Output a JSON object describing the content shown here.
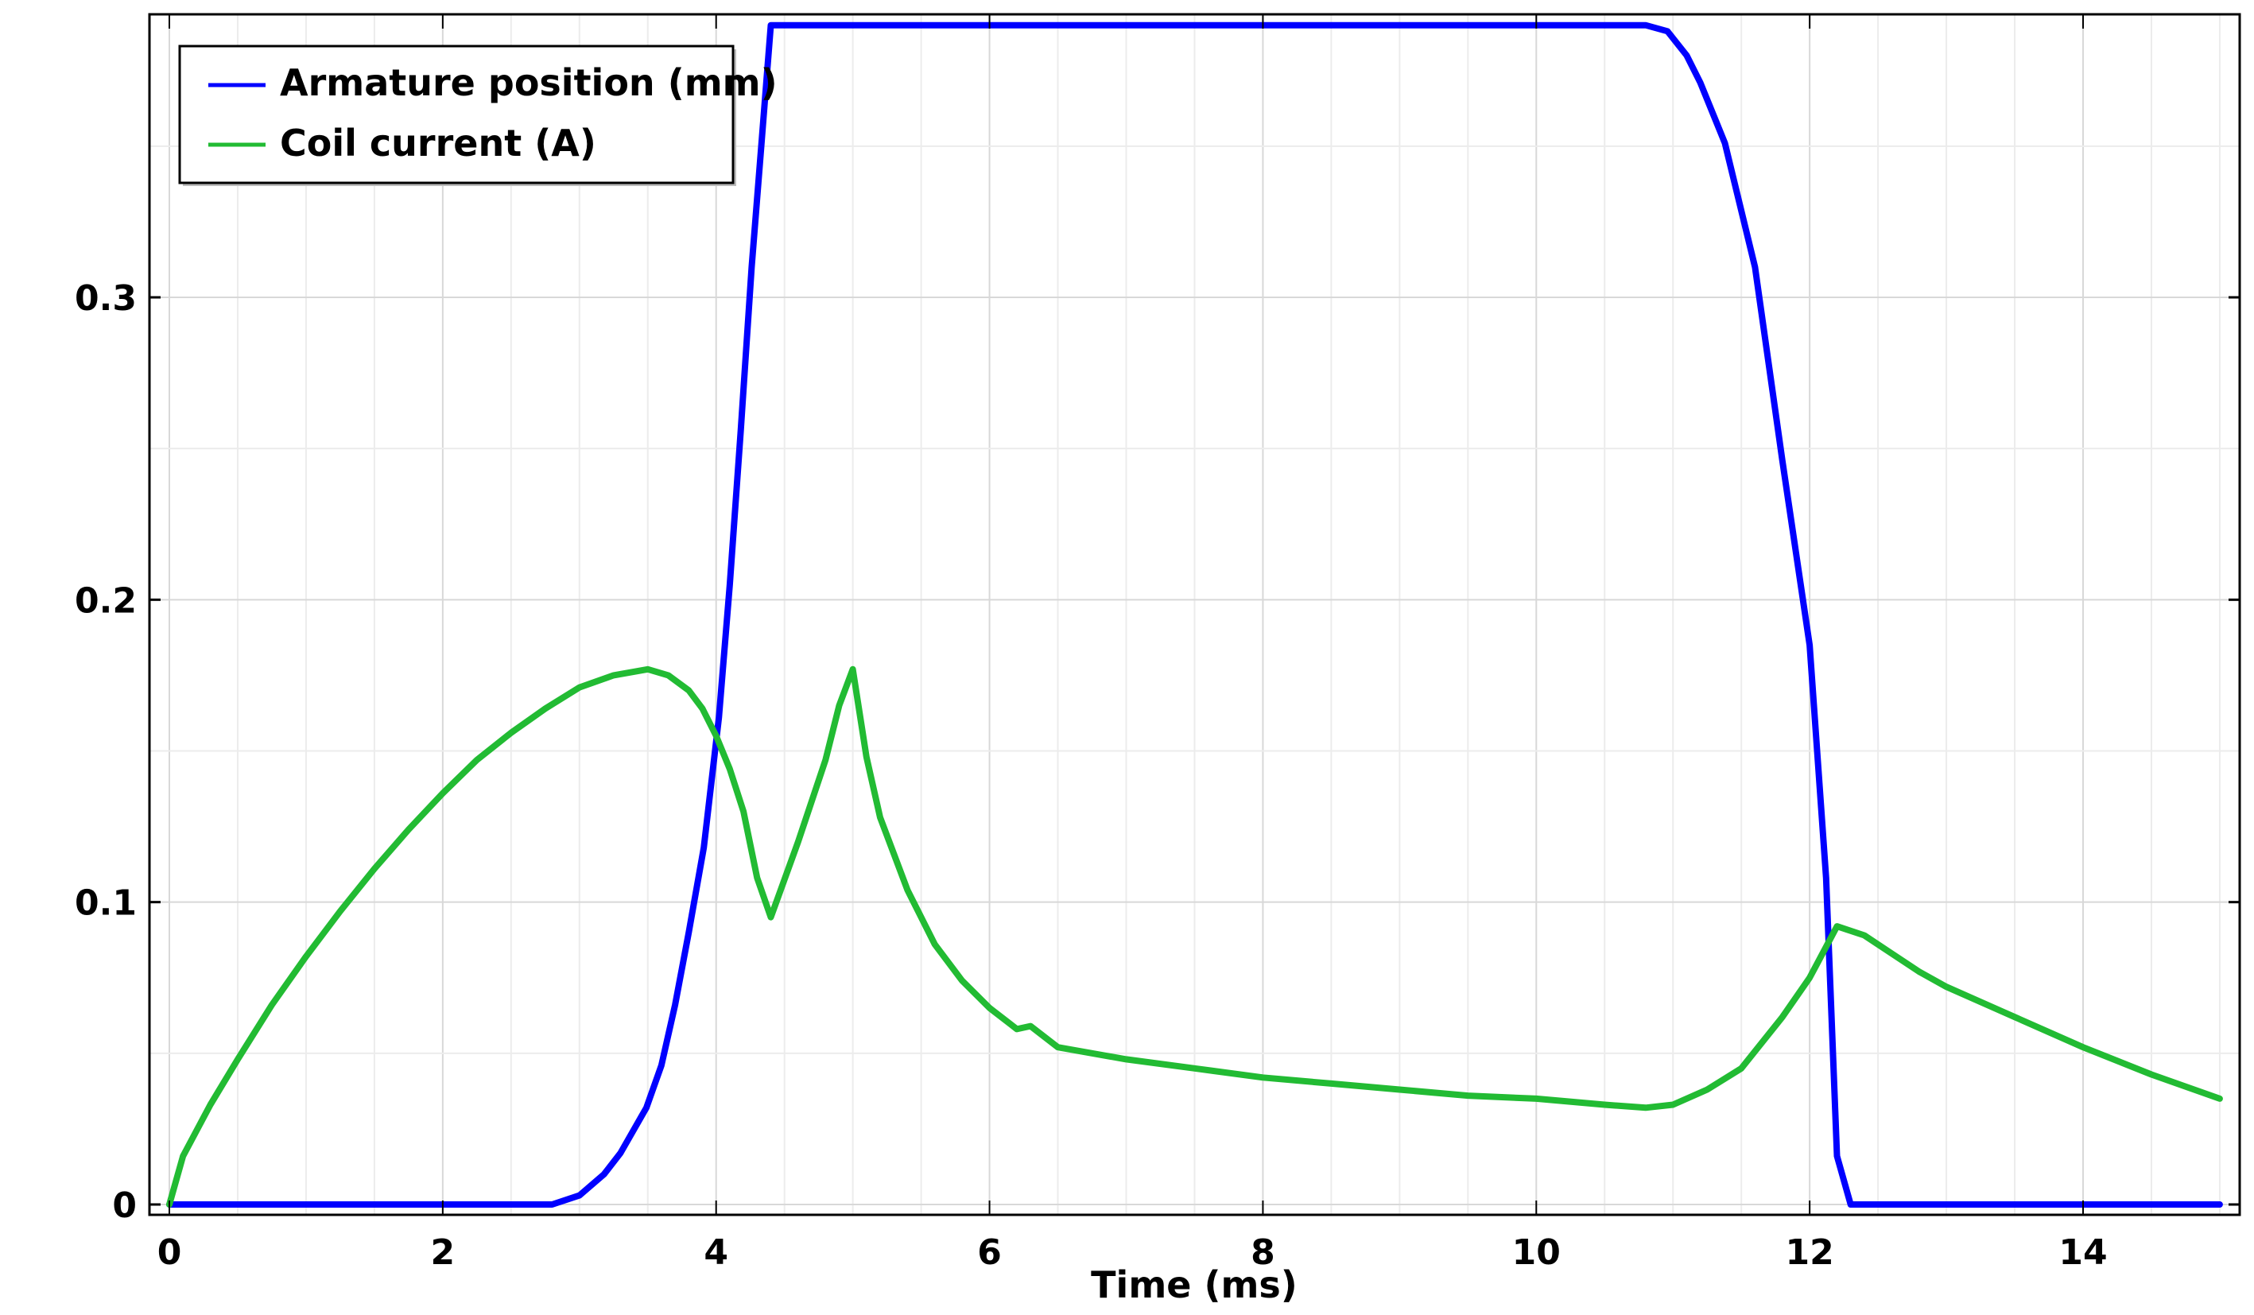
{
  "chart_data": {
    "type": "line",
    "title": "",
    "xlabel": "Time (ms)",
    "ylabel": "",
    "xlim": [
      -0.15,
      15.15
    ],
    "ylim": [
      -0.0035,
      0.3937
    ],
    "grid": true,
    "legend_position": "top-left",
    "x_ticks": [
      "0",
      "2",
      "4",
      "6",
      "8",
      "10",
      "12",
      "14"
    ],
    "x_tick_values": [
      0,
      2,
      4,
      6,
      8,
      10,
      12,
      14
    ],
    "y_ticks": [
      "0",
      "0.1",
      "0.2",
      "0.3"
    ],
    "y_tick_values": [
      0,
      0.1,
      0.2,
      0.3
    ],
    "series": [
      {
        "name": "Armature position (mm)",
        "color": "#0000ff",
        "x": [
          0,
          1,
          2,
          2.8,
          3.0,
          3.18,
          3.3,
          3.49,
          3.6,
          3.7,
          3.8,
          3.91,
          4.02,
          4.1,
          4.18,
          4.26,
          4.33,
          4.4,
          5,
          6,
          7,
          8,
          9,
          10,
          10.8,
          10.96,
          11.1,
          11.2,
          11.38,
          11.6,
          11.8,
          12.0,
          12.12,
          12.2,
          12.3,
          13,
          14,
          15
        ],
        "y": [
          0,
          0,
          0,
          0,
          0.003,
          0.01,
          0.017,
          0.032,
          0.046,
          0.066,
          0.09,
          0.118,
          0.161,
          0.205,
          0.256,
          0.31,
          0.35,
          0.39,
          0.39,
          0.39,
          0.39,
          0.39,
          0.39,
          0.39,
          0.39,
          0.388,
          0.38,
          0.371,
          0.351,
          0.31,
          0.246,
          0.185,
          0.108,
          0.016,
          0,
          0,
          0,
          0
        ]
      },
      {
        "name": "Coil current (A)",
        "color": "#22bb33",
        "x": [
          0,
          0.1,
          0.3,
          0.5,
          0.75,
          1.0,
          1.25,
          1.5,
          1.75,
          2.0,
          2.25,
          2.5,
          2.75,
          3.0,
          3.25,
          3.5,
          3.65,
          3.8,
          3.9,
          4.0,
          4.1,
          4.2,
          4.3,
          4.4,
          4.6,
          4.8,
          4.9,
          5.0,
          5.1,
          5.2,
          5.4,
          5.6,
          5.8,
          6.0,
          6.2,
          6.3,
          6.5,
          7.0,
          7.5,
          8.0,
          8.5,
          9.0,
          9.5,
          10.0,
          10.5,
          10.8,
          11.0,
          11.25,
          11.5,
          11.8,
          12.0,
          12.2,
          12.4,
          12.6,
          12.8,
          13.0,
          13.5,
          14.0,
          14.5,
          15.0
        ],
        "y": [
          0,
          0.016,
          0.033,
          0.048,
          0.066,
          0.082,
          0.097,
          0.111,
          0.124,
          0.136,
          0.147,
          0.156,
          0.164,
          0.171,
          0.175,
          0.177,
          0.175,
          0.17,
          0.164,
          0.155,
          0.144,
          0.13,
          0.108,
          0.095,
          0.12,
          0.147,
          0.165,
          0.177,
          0.148,
          0.128,
          0.104,
          0.086,
          0.074,
          0.065,
          0.058,
          0.059,
          0.052,
          0.048,
          0.045,
          0.042,
          0.04,
          0.038,
          0.036,
          0.035,
          0.033,
          0.032,
          0.033,
          0.038,
          0.045,
          0.062,
          0.075,
          0.092,
          0.089,
          0.083,
          0.077,
          0.072,
          0.062,
          0.052,
          0.043,
          0.035
        ]
      }
    ]
  }
}
